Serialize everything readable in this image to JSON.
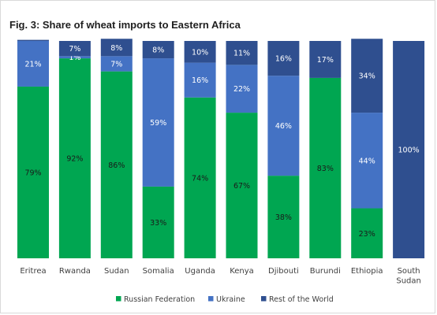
{
  "chart_data": {
    "type": "bar",
    "stacked": true,
    "title": "Fig. 3: Share of wheat imports to Eastern Africa",
    "xlabel": "",
    "ylabel": "",
    "ylim": [
      0,
      100
    ],
    "grid": false,
    "legend_position": "bottom",
    "categories": [
      [
        "Eritrea"
      ],
      [
        "Rwanda"
      ],
      [
        "Sudan"
      ],
      [
        "Somalia"
      ],
      [
        "Uganda"
      ],
      [
        "Kenya"
      ],
      [
        "Djibouti"
      ],
      [
        "Burundi"
      ],
      [
        "Ethiopia"
      ],
      [
        "South",
        "Sudan"
      ]
    ],
    "series": [
      {
        "name": "Russian Federation",
        "color": "#00a651",
        "values": [
          79,
          92,
          86,
          33,
          74,
          67,
          38,
          83,
          23,
          0
        ],
        "labels": [
          "79%",
          "92%",
          "86%",
          "33%",
          "74%",
          "67%",
          "38%",
          "83%",
          "23%",
          ""
        ]
      },
      {
        "name": "Ukraine",
        "color": "#4472c4",
        "values": [
          21,
          1,
          7,
          59,
          16,
          22,
          46,
          0,
          44,
          0
        ],
        "labels": [
          "21%",
          "1%",
          "7%",
          "59%",
          "16%",
          "22%",
          "46%",
          "",
          "44%",
          ""
        ]
      },
      {
        "name": "Rest of the World",
        "color": "#2f4f8f",
        "values": [
          0.5,
          7,
          8,
          8,
          10,
          11,
          16,
          17,
          34,
          100
        ],
        "labels": [
          "",
          "7%",
          "8%",
          "8%",
          "10%",
          "11%",
          "16%",
          "17%",
          "34%",
          "100%"
        ]
      }
    ]
  }
}
